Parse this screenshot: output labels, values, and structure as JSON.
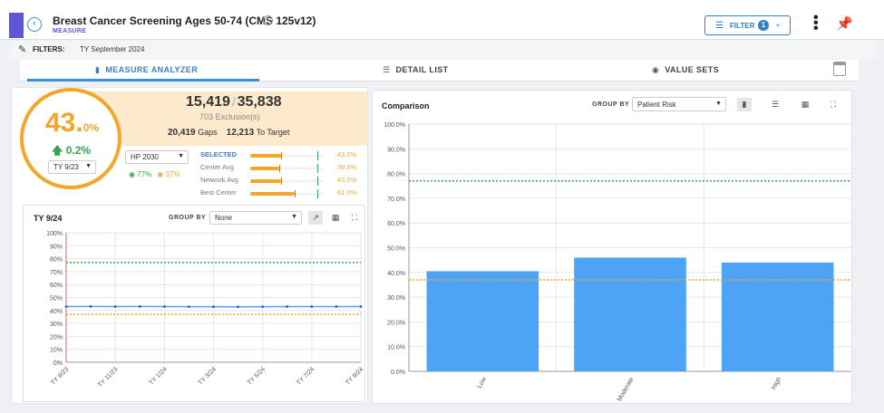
{
  "header": {
    "title": "Breast Cancer Screening Ages 50-74 (CMS 125v12)",
    "subtitle": "MEASURE",
    "filter_label": "FILTER",
    "filter_count": "1"
  },
  "filters": {
    "label": "FILTERS:",
    "value": "TY September 2024"
  },
  "tabs": [
    {
      "label": "MEASURE ANALYZER"
    },
    {
      "label": "DETAIL LIST"
    },
    {
      "label": "VALUE SETS"
    }
  ],
  "summary": {
    "numerator": "15,419",
    "separator": "/",
    "denominator": "35,838",
    "exclusions_value": "703",
    "exclusions_label": "Exclusion(s)",
    "gaps_value": "20,419",
    "gaps_label": "Gaps",
    "to_target_value": "12,213",
    "to_target_label": "To Target",
    "rate_main": "43.",
    "rate_decimal": "0%",
    "delta": "0.2%",
    "period_select": "TY 9/23",
    "benchmark_select": "HP 2030",
    "target_green": "77%",
    "target_orange": "37%",
    "comparisons": [
      {
        "label": "SELECTED",
        "value": "43.0%",
        "level": 0.43
      },
      {
        "label": "Center Avg",
        "value": "39.6%",
        "level": 0.396
      },
      {
        "label": "Network Avg",
        "value": "43.0%",
        "level": 0.43
      },
      {
        "label": "Best Center",
        "value": "61.0%",
        "level": 0.61
      }
    ]
  },
  "trend": {
    "title": "TY 9/24",
    "group_by_label": "GROUP BY",
    "group_by_value": "None"
  },
  "comparison": {
    "title": "Comparison",
    "group_by_label": "GROUP BY",
    "group_by_value": "Patient Risk"
  },
  "colors": {
    "accent": "#5b57d6",
    "primary": "#3a8fd8",
    "orange": "#f2a72b",
    "green": "#3aa356",
    "bar": "#4da3f5"
  },
  "chart_data": [
    {
      "type": "line",
      "x": [
        "TY 9/23",
        "TY 10/23",
        "TY 11/23",
        "TY 12/23",
        "TY 1/24",
        "TY 2/24",
        "TY 3/24",
        "TY 4/24",
        "TY 5/24",
        "TY 6/24",
        "TY 7/24",
        "TY 8/24",
        "TY 9/24"
      ],
      "xticks": [
        "TY 9/23",
        "TY 11/23",
        "TY 1/24",
        "TY 3/24",
        "TY 5/24",
        "TY 7/24",
        "TY 9/24"
      ],
      "series": [
        {
          "values": [
            43.0,
            43.1,
            43.0,
            43.1,
            43.0,
            42.9,
            42.9,
            42.8,
            42.9,
            43.0,
            43.0,
            43.0,
            43.0
          ]
        }
      ],
      "yticks": [
        "0%",
        "10%",
        "20%",
        "30%",
        "40%",
        "50%",
        "60%",
        "70%",
        "80%",
        "90%",
        "100%"
      ],
      "ylim": [
        0,
        100
      ],
      "reference_lines": [
        {
          "value": 77,
          "color": "#3aa356"
        },
        {
          "value": 37,
          "color": "#f2a72b"
        }
      ],
      "marker_x": "TY 9/23",
      "grid": true
    },
    {
      "type": "bar",
      "categories": [
        "Low",
        "Moderate",
        "High"
      ],
      "values": [
        40.5,
        46.0,
        44.0
      ],
      "yticks": [
        "0.0%",
        "10.0%",
        "20.0%",
        "30.0%",
        "40.0%",
        "50.0%",
        "60.0%",
        "70.0%",
        "80.0%",
        "90.0%",
        "100.0%"
      ],
      "ylim": [
        0,
        100
      ],
      "reference_lines": [
        {
          "value": 77,
          "color": "#3aa356"
        },
        {
          "value": 37,
          "color": "#f2a72b"
        }
      ],
      "grid": true
    }
  ]
}
